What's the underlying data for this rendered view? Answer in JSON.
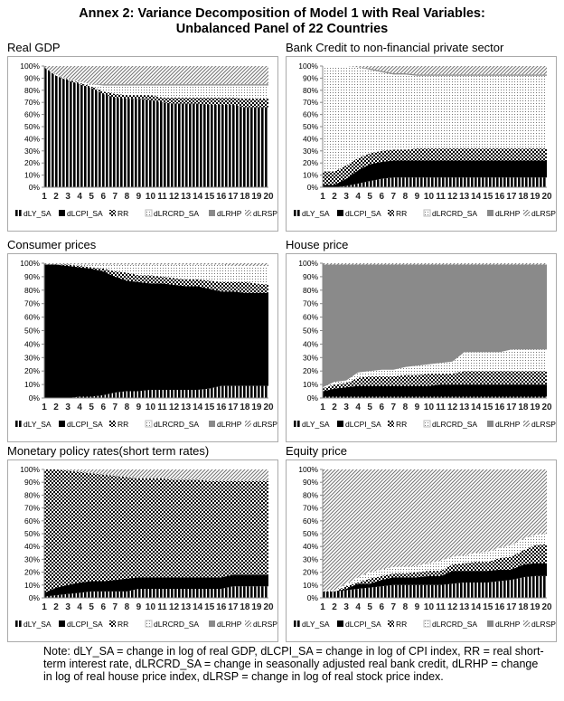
{
  "title_line1": "Annex 2: Variance Decomposition of Model 1 with Real Variables:",
  "title_line2": "Unbalanced Panel of 22 Countries",
  "note": "Note: dLY_SA = change in log of real GDP, dLCPI_SA = change in log of CPI index, RR = real short-term interest rate, dLRCRD_SA = change in seasonally adjusted real bank credit, dLRHP = change in log of real house price index, dLRSP = change in log of real stock price index.",
  "chart_data": [
    {
      "type": "area",
      "stacked": true,
      "title": "Real GDP",
      "categories": [
        "1",
        "2",
        "3",
        "4",
        "5",
        "6",
        "7",
        "8",
        "9",
        "10",
        "11",
        "12",
        "13",
        "14",
        "15",
        "16",
        "17",
        "18",
        "19",
        "20"
      ],
      "y_ticks": [
        "0%",
        "10%",
        "20%",
        "30%",
        "40%",
        "50%",
        "60%",
        "70%",
        "80%",
        "90%",
        "100%"
      ],
      "ylim": [
        0,
        100
      ],
      "legend": "bottom",
      "series": [
        {
          "name": "dLY_SA",
          "values": [
            99,
            92,
            88,
            85,
            82,
            77,
            74,
            73,
            73,
            72,
            70,
            69,
            69,
            69,
            68,
            68,
            68,
            66,
            66,
            66
          ]
        },
        {
          "name": "dLCPI_SA",
          "values": [
            0,
            0,
            0,
            0,
            0,
            0,
            0,
            0,
            0,
            0,
            0,
            0,
            0,
            0,
            0,
            0,
            0,
            0,
            0,
            0
          ]
        },
        {
          "name": "RR",
          "values": [
            0,
            0,
            1,
            1,
            1,
            2,
            3,
            3,
            3,
            4,
            4,
            5,
            5,
            5,
            6,
            6,
            6,
            7,
            7,
            7
          ]
        },
        {
          "name": "dLRCRD_SA",
          "values": [
            0,
            1,
            0,
            1,
            2,
            5,
            7,
            8,
            8,
            8,
            10,
            10,
            10,
            10,
            10,
            10,
            10,
            11,
            11,
            11
          ]
        },
        {
          "name": "dLRHP",
          "values": [
            0,
            0,
            0,
            0,
            0,
            1,
            1,
            1,
            1,
            1,
            1,
            1,
            1,
            1,
            1,
            1,
            1,
            1,
            1,
            1
          ]
        },
        {
          "name": "dLRSP",
          "values": [
            1,
            7,
            11,
            13,
            15,
            15,
            15,
            15,
            15,
            15,
            15,
            15,
            15,
            15,
            15,
            15,
            15,
            15,
            15,
            15
          ]
        }
      ]
    },
    {
      "type": "area",
      "stacked": true,
      "title": "Bank Credit to non-financial private sector",
      "categories": [
        "1",
        "2",
        "3",
        "4",
        "5",
        "6",
        "7",
        "8",
        "9",
        "10",
        "11",
        "12",
        "13",
        "14",
        "15",
        "16",
        "17",
        "18",
        "19",
        "20"
      ],
      "y_ticks": [
        "0%",
        "10%",
        "20%",
        "30%",
        "40%",
        "50%",
        "60%",
        "70%",
        "80%",
        "90%",
        "100%"
      ],
      "ylim": [
        0,
        100
      ],
      "legend": "bottom",
      "series": [
        {
          "name": "dLY_SA",
          "values": [
            0,
            0,
            1,
            3,
            5,
            7,
            8,
            8,
            8,
            8,
            8,
            8,
            8,
            8,
            8,
            8,
            8,
            8,
            8,
            8
          ]
        },
        {
          "name": "dLCPI_SA",
          "values": [
            2,
            2,
            6,
            11,
            14,
            14,
            14,
            14,
            14,
            14,
            14,
            14,
            14,
            14,
            14,
            14,
            14,
            14,
            14,
            14
          ]
        },
        {
          "name": "RR",
          "values": [
            11,
            11,
            11,
            10,
            9,
            9,
            9,
            9,
            10,
            10,
            10,
            10,
            10,
            10,
            10,
            10,
            10,
            10,
            10,
            10
          ]
        },
        {
          "name": "dLRCRD_SA",
          "values": [
            87,
            87,
            82,
            75,
            69,
            65,
            62,
            62,
            60,
            60,
            60,
            60,
            60,
            60,
            60,
            60,
            60,
            60,
            60,
            60
          ]
        },
        {
          "name": "dLRHP",
          "values": [
            0,
            0,
            0,
            0,
            1,
            1,
            1,
            1,
            1,
            1,
            1,
            1,
            1,
            1,
            1,
            1,
            1,
            1,
            1,
            1
          ]
        },
        {
          "name": "dLRSP",
          "values": [
            0,
            0,
            0,
            1,
            2,
            4,
            6,
            6,
            7,
            7,
            7,
            7,
            7,
            7,
            7,
            7,
            7,
            7,
            7,
            7
          ]
        }
      ]
    },
    {
      "type": "area",
      "stacked": true,
      "title": "Consumer prices",
      "categories": [
        "1",
        "2",
        "3",
        "4",
        "5",
        "6",
        "7",
        "8",
        "9",
        "10",
        "11",
        "12",
        "13",
        "14",
        "15",
        "16",
        "17",
        "18",
        "19",
        "20"
      ],
      "y_ticks": [
        "0%",
        "10%",
        "20%",
        "30%",
        "40%",
        "50%",
        "60%",
        "70%",
        "80%",
        "90%",
        "100%"
      ],
      "ylim": [
        0,
        100
      ],
      "legend": "bottom",
      "series": [
        {
          "name": "dLY_SA",
          "values": [
            0,
            0,
            0,
            1,
            1,
            2,
            4,
            5,
            5,
            6,
            6,
            6,
            6,
            6,
            7,
            9,
            9,
            9,
            9,
            9
          ]
        },
        {
          "name": "dLCPI_SA",
          "values": [
            99,
            99,
            98,
            96,
            95,
            92,
            86,
            82,
            81,
            79,
            79,
            78,
            77,
            77,
            74,
            70,
            70,
            69,
            69,
            69
          ]
        },
        {
          "name": "RR",
          "values": [
            0,
            0,
            1,
            1,
            1,
            2,
            4,
            6,
            5,
            6,
            5,
            5,
            5,
            5,
            6,
            7,
            7,
            8,
            7,
            6
          ]
        },
        {
          "name": "dLRCRD_SA",
          "values": [
            0,
            0,
            0,
            1,
            2,
            3,
            5,
            6,
            8,
            8,
            9,
            10,
            11,
            11,
            12,
            13,
            12,
            12,
            13,
            14
          ]
        },
        {
          "name": "dLRHP",
          "values": [
            0,
            0,
            0,
            0,
            0,
            0,
            0,
            0,
            0,
            0,
            0,
            0,
            0,
            0,
            0,
            0,
            0,
            0,
            0,
            0
          ]
        },
        {
          "name": "dLRSP",
          "values": [
            1,
            1,
            1,
            1,
            1,
            1,
            1,
            1,
            1,
            1,
            1,
            1,
            1,
            1,
            1,
            1,
            2,
            2,
            2,
            2
          ]
        }
      ]
    },
    {
      "type": "area",
      "stacked": true,
      "title": "House price",
      "categories": [
        "1",
        "2",
        "3",
        "4",
        "5",
        "6",
        "7",
        "8",
        "9",
        "10",
        "11",
        "12",
        "13",
        "14",
        "15",
        "16",
        "17",
        "18",
        "19",
        "20"
      ],
      "y_ticks": [
        "0%",
        "10%",
        "20%",
        "30%",
        "40%",
        "50%",
        "60%",
        "70%",
        "80%",
        "90%",
        "100%"
      ],
      "ylim": [
        0,
        100
      ],
      "legend": "bottom",
      "series": [
        {
          "name": "dLY_SA",
          "values": [
            1,
            1,
            1,
            1,
            1,
            1,
            1,
            1,
            1,
            1,
            1,
            1,
            1,
            1,
            1,
            1,
            1,
            1,
            1,
            1
          ]
        },
        {
          "name": "dLCPI_SA",
          "values": [
            4,
            6,
            7,
            8,
            8,
            8,
            8,
            8,
            8,
            8,
            9,
            9,
            9,
            9,
            9,
            9,
            9,
            9,
            9,
            9
          ]
        },
        {
          "name": "RR",
          "values": [
            2,
            3,
            3,
            6,
            7,
            7,
            7,
            8,
            8,
            9,
            8,
            8,
            10,
            10,
            10,
            10,
            10,
            10,
            10,
            10
          ]
        },
        {
          "name": "dLRCRD_SA",
          "values": [
            1,
            2,
            2,
            4,
            4,
            5,
            5,
            6,
            7,
            7,
            8,
            9,
            14,
            14,
            14,
            14,
            16,
            16,
            16,
            16
          ]
        },
        {
          "name": "dLRHP",
          "values": [
            91,
            87,
            86,
            80,
            79,
            78,
            78,
            76,
            75,
            74,
            73,
            72,
            65,
            65,
            65,
            65,
            63,
            63,
            63,
            63
          ]
        },
        {
          "name": "dLRSP",
          "values": [
            1,
            1,
            1,
            1,
            1,
            1,
            1,
            1,
            1,
            1,
            1,
            1,
            1,
            1,
            1,
            1,
            1,
            1,
            1,
            1
          ]
        }
      ]
    },
    {
      "type": "area",
      "stacked": true,
      "title": "Monetary policy rates(short term rates)",
      "categories": [
        "1",
        "2",
        "3",
        "4",
        "5",
        "6",
        "7",
        "8",
        "9",
        "10",
        "11",
        "12",
        "13",
        "14",
        "15",
        "16",
        "17",
        "18",
        "19",
        "20"
      ],
      "y_ticks": [
        "0%",
        "10%",
        "20%",
        "30%",
        "40%",
        "50%",
        "60%",
        "70%",
        "80%",
        "90%",
        "100%"
      ],
      "ylim": [
        0,
        100
      ],
      "legend": "bottom",
      "series": [
        {
          "name": "dLY_SA",
          "values": [
            1,
            2,
            3,
            4,
            5,
            5,
            5,
            5,
            7,
            7,
            7,
            7,
            7,
            7,
            7,
            7,
            9,
            9,
            9,
            9
          ]
        },
        {
          "name": "dLCPI_SA",
          "values": [
            3,
            6,
            7,
            8,
            8,
            8,
            9,
            10,
            9,
            9,
            9,
            9,
            9,
            9,
            9,
            9,
            9,
            9,
            9,
            9
          ]
        },
        {
          "name": "RR",
          "values": [
            96,
            92,
            89,
            86,
            84,
            83,
            81,
            79,
            77,
            77,
            77,
            76,
            76,
            76,
            75,
            75,
            73,
            73,
            73,
            73
          ]
        },
        {
          "name": "dLRCRD_SA",
          "values": [
            0,
            0,
            0,
            0,
            0,
            0,
            0,
            0,
            0,
            0,
            0,
            0,
            0,
            0,
            0,
            0,
            0,
            0,
            0,
            0
          ]
        },
        {
          "name": "dLRHP",
          "values": [
            0,
            0,
            0,
            0,
            0,
            0,
            0,
            0,
            0,
            0,
            0,
            0,
            0,
            0,
            0,
            0,
            0,
            0,
            0,
            0
          ]
        },
        {
          "name": "dLRSP",
          "values": [
            0,
            0,
            1,
            2,
            3,
            4,
            5,
            6,
            7,
            7,
            7,
            8,
            8,
            8,
            9,
            9,
            9,
            9,
            9,
            9
          ]
        }
      ]
    },
    {
      "type": "area",
      "stacked": true,
      "title": "Equity price",
      "categories": [
        "1",
        "2",
        "3",
        "4",
        "5",
        "6",
        "7",
        "8",
        "9",
        "10",
        "11",
        "12",
        "13",
        "14",
        "15",
        "16",
        "17",
        "18",
        "19",
        "20"
      ],
      "y_ticks": [
        "0%",
        "10%",
        "20%",
        "30%",
        "40%",
        "50%",
        "60%",
        "70%",
        "80%",
        "90%",
        "100%"
      ],
      "ylim": [
        0,
        100
      ],
      "legend": "bottom",
      "series": [
        {
          "name": "dLY_SA",
          "values": [
            5,
            5,
            6,
            7,
            8,
            9,
            10,
            10,
            10,
            10,
            10,
            11,
            12,
            12,
            12,
            13,
            14,
            16,
            17,
            17
          ]
        },
        {
          "name": "dLCPI_SA",
          "values": [
            0,
            0,
            1,
            4,
            3,
            5,
            6,
            6,
            6,
            7,
            7,
            10,
            9,
            9,
            9,
            9,
            8,
            10,
            10,
            10
          ]
        },
        {
          "name": "RR",
          "values": [
            0,
            0,
            2,
            1,
            4,
            3,
            3,
            3,
            4,
            4,
            4,
            5,
            6,
            7,
            7,
            9,
            10,
            11,
            14,
            15
          ]
        },
        {
          "name": "dLRCRD_SA",
          "values": [
            1,
            1,
            2,
            4,
            5,
            5,
            5,
            5,
            5,
            6,
            8,
            6,
            6,
            7,
            8,
            8,
            9,
            9,
            8,
            8
          ]
        },
        {
          "name": "dLRHP",
          "values": [
            0,
            0,
            0,
            0,
            0,
            0,
            0,
            0,
            0,
            0,
            0,
            0,
            0,
            0,
            0,
            0,
            0,
            0,
            0,
            0
          ]
        },
        {
          "name": "dLRSP",
          "values": [
            94,
            94,
            89,
            84,
            80,
            78,
            76,
            76,
            75,
            73,
            71,
            68,
            67,
            65,
            64,
            61,
            59,
            54,
            51,
            50
          ]
        }
      ]
    }
  ]
}
